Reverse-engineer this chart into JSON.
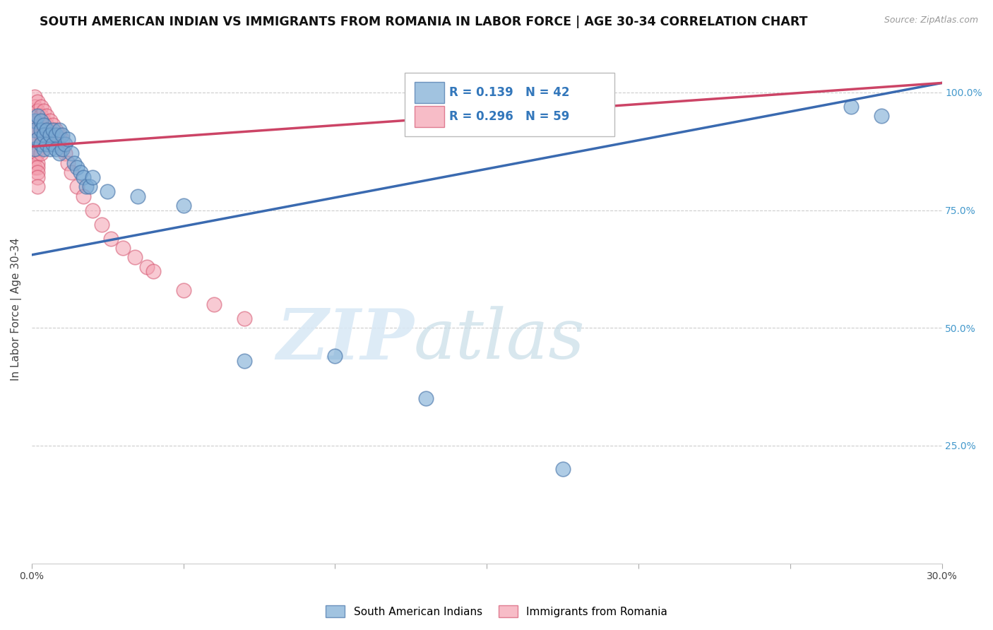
{
  "title": "SOUTH AMERICAN INDIAN VS IMMIGRANTS FROM ROMANIA IN LABOR FORCE | AGE 30-34 CORRELATION CHART",
  "source": "Source: ZipAtlas.com",
  "ylabel": "In Labor Force | Age 30-34",
  "xlim": [
    0.0,
    0.3
  ],
  "ylim": [
    0.0,
    1.08
  ],
  "xticks": [
    0.0,
    0.05,
    0.1,
    0.15,
    0.2,
    0.25,
    0.3
  ],
  "xtick_labels": [
    "0.0%",
    "",
    "",
    "",
    "",
    "",
    "30.0%"
  ],
  "yticks": [
    0.25,
    0.5,
    0.75,
    1.0
  ],
  "ytick_labels": [
    "25.0%",
    "50.0%",
    "75.0%",
    "100.0%"
  ],
  "blue_R": 0.139,
  "blue_N": 42,
  "pink_R": 0.296,
  "pink_N": 59,
  "blue_color": "#7aaad4",
  "pink_color": "#f4a0b0",
  "blue_edge_color": "#4472a8",
  "pink_edge_color": "#d45570",
  "blue_line_color": "#3a6ab0",
  "pink_line_color": "#cc4466",
  "legend_label_blue": "South American Indians",
  "legend_label_pink": "Immigrants from Romania",
  "watermark_zip": "ZIP",
  "watermark_atlas": "atlas",
  "background_color": "#ffffff",
  "grid_color": "#cccccc",
  "title_fontsize": 12.5,
  "axis_fontsize": 11,
  "tick_fontsize": 10,
  "blue_x": [
    0.001,
    0.001,
    0.001,
    0.002,
    0.002,
    0.003,
    0.003,
    0.003,
    0.004,
    0.004,
    0.004,
    0.005,
    0.005,
    0.006,
    0.006,
    0.007,
    0.007,
    0.008,
    0.008,
    0.009,
    0.009,
    0.01,
    0.01,
    0.011,
    0.012,
    0.013,
    0.014,
    0.015,
    0.016,
    0.017,
    0.018,
    0.019,
    0.02,
    0.025,
    0.035,
    0.05,
    0.07,
    0.1,
    0.13,
    0.175,
    0.27,
    0.28
  ],
  "blue_y": [
    0.94,
    0.92,
    0.88,
    0.95,
    0.9,
    0.94,
    0.92,
    0.89,
    0.93,
    0.91,
    0.88,
    0.92,
    0.89,
    0.91,
    0.88,
    0.92,
    0.89,
    0.91,
    0.88,
    0.92,
    0.87,
    0.91,
    0.88,
    0.89,
    0.9,
    0.87,
    0.85,
    0.84,
    0.83,
    0.82,
    0.8,
    0.8,
    0.82,
    0.79,
    0.78,
    0.76,
    0.43,
    0.44,
    0.35,
    0.2,
    0.97,
    0.95
  ],
  "pink_x": [
    0.001,
    0.001,
    0.001,
    0.001,
    0.001,
    0.001,
    0.001,
    0.001,
    0.001,
    0.002,
    0.002,
    0.002,
    0.002,
    0.002,
    0.002,
    0.002,
    0.002,
    0.002,
    0.002,
    0.002,
    0.002,
    0.003,
    0.003,
    0.003,
    0.003,
    0.003,
    0.003,
    0.004,
    0.004,
    0.004,
    0.004,
    0.005,
    0.005,
    0.005,
    0.006,
    0.006,
    0.006,
    0.007,
    0.007,
    0.008,
    0.008,
    0.009,
    0.01,
    0.01,
    0.011,
    0.012,
    0.013,
    0.015,
    0.017,
    0.02,
    0.023,
    0.026,
    0.03,
    0.034,
    0.038,
    0.04,
    0.05,
    0.06,
    0.07
  ],
  "pink_y": [
    0.99,
    0.97,
    0.95,
    0.93,
    0.91,
    0.89,
    0.88,
    0.86,
    0.84,
    0.98,
    0.96,
    0.94,
    0.92,
    0.9,
    0.88,
    0.87,
    0.85,
    0.84,
    0.83,
    0.82,
    0.8,
    0.97,
    0.95,
    0.93,
    0.91,
    0.89,
    0.87,
    0.96,
    0.94,
    0.92,
    0.9,
    0.95,
    0.93,
    0.91,
    0.94,
    0.92,
    0.9,
    0.93,
    0.91,
    0.92,
    0.9,
    0.91,
    0.9,
    0.88,
    0.87,
    0.85,
    0.83,
    0.8,
    0.78,
    0.75,
    0.72,
    0.69,
    0.67,
    0.65,
    0.63,
    0.62,
    0.58,
    0.55,
    0.52
  ]
}
